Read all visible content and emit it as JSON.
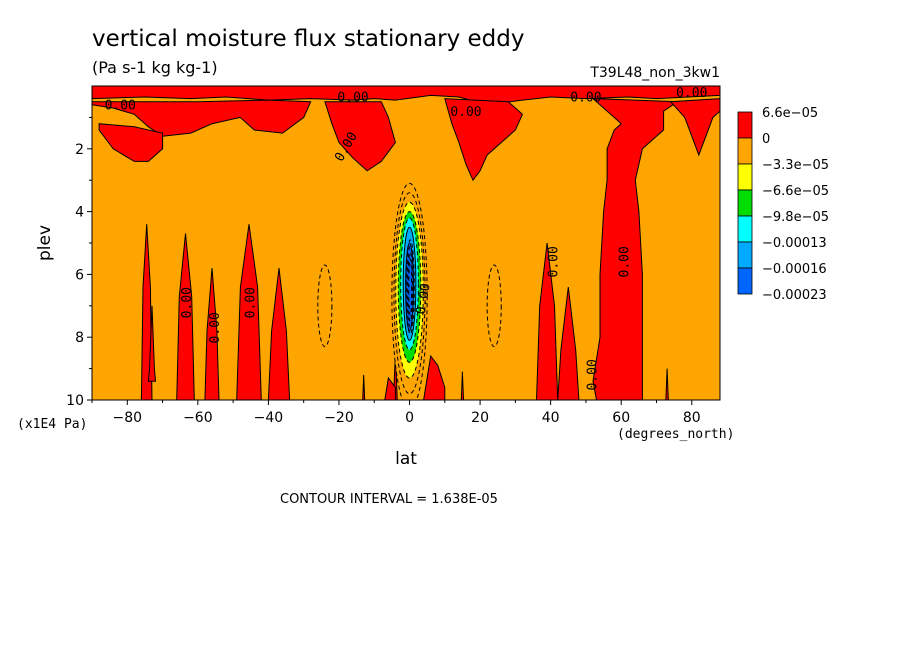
{
  "chart_data": {
    "type": "heatmap",
    "title": "vertical moisture flux stationary eddy",
    "units": "(Pa s-1 kg kg-1)",
    "run_label": "T39L48_non_3kw1",
    "xlabel": "lat",
    "xunits": "(degrees_north)",
    "ylabel": "plev",
    "yunits": "(x1E4 Pa)",
    "xlim": [
      -90,
      88
    ],
    "ylim": [
      10,
      0
    ],
    "x_ticks": [
      -80,
      -60,
      -40,
      -20,
      0,
      20,
      40,
      60,
      80
    ],
    "y_ticks": [
      2,
      4,
      6,
      8,
      10
    ],
    "contour_interval_text": "CONTOUR INTERVAL = 1.638E-05",
    "contour_label": "0.00",
    "legend": {
      "placement": "right",
      "labels": [
        "6.6e-05",
        "0",
        "-3.3e-05",
        "-6.6e-05",
        "-9.8e-05",
        "-0.00013",
        "-0.00016",
        "-0.00023"
      ],
      "colors": [
        "#ff0000",
        "#ffa500",
        "#ffff00",
        "#00dd00",
        "#00ffff",
        "#00aaff",
        "#0066ff"
      ]
    },
    "colors": {
      "positive": "#ff0000",
      "background": "#ffa500",
      "neg1": "#ffff00",
      "neg2": "#00dd00",
      "neg3": "#00ffff",
      "neg4": "#00aaff",
      "neg5": "#0066ff"
    }
  }
}
